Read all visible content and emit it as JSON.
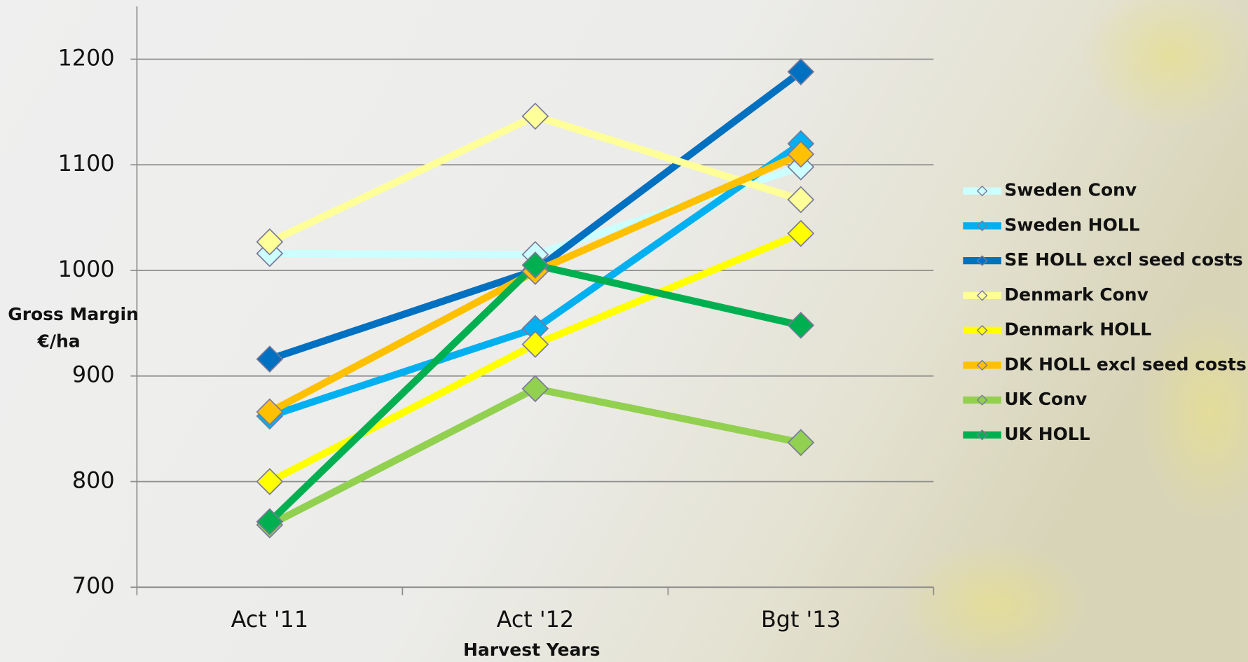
{
  "chart_data": {
    "type": "line",
    "x_label": "Harvest Years",
    "y_label": [
      "Gross Margin",
      "€/ha"
    ],
    "categories": [
      "Act '11",
      "Act '12",
      "Bgt '13"
    ],
    "ylim": [
      700,
      1250
    ],
    "yticks": [
      700,
      800,
      900,
      1000,
      1100,
      1200
    ],
    "grid": true,
    "legend": "right",
    "series": [
      {
        "name": "Sweden Conv",
        "color": "#ccffff",
        "values": [
          1016,
          1015,
          1098
        ]
      },
      {
        "name": "Sweden HOLL",
        "color": "#00b0f0",
        "values": [
          862,
          945,
          1120
        ]
      },
      {
        "name": "SE HOLL excl seed costs",
        "color": "#0070c0",
        "values": [
          916,
          1000,
          1188
        ]
      },
      {
        "name": "Denmark Conv",
        "color": "#ffff99",
        "values": [
          1027,
          1146,
          1067
        ]
      },
      {
        "name": "Denmark HOLL",
        "color": "#ffff00",
        "values": [
          800,
          930,
          1035
        ]
      },
      {
        "name": "DK HOLL excl seed costs",
        "color": "#ffc000",
        "values": [
          866,
          999,
          1110
        ]
      },
      {
        "name": "UK Conv",
        "color": "#92d050",
        "values": [
          759,
          888,
          837
        ]
      },
      {
        "name": "UK HOLL",
        "color": "#00b050",
        "values": [
          762,
          1005,
          948
        ]
      }
    ]
  }
}
